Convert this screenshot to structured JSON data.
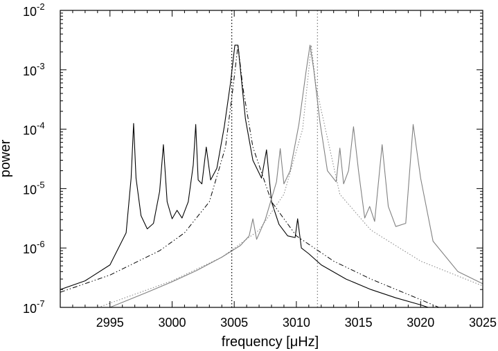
{
  "chart_data": {
    "type": "line",
    "title": "",
    "xlabel": "frequency [μHz]",
    "ylabel": "power",
    "x_scale": "linear",
    "y_scale": "log",
    "xlim": [
      2991,
      3025
    ],
    "ylim": [
      1e-07,
      0.01
    ],
    "grid": false,
    "legend": "none",
    "x_ticks": [
      {
        "value": 2995,
        "label": "2995"
      },
      {
        "value": 3000,
        "label": "3000"
      },
      {
        "value": 3005,
        "label": "3005"
      },
      {
        "value": 3010,
        "label": "3010"
      },
      {
        "value": 3015,
        "label": "3015"
      },
      {
        "value": 3020,
        "label": "3020"
      },
      {
        "value": 3025,
        "label": "3025"
      }
    ],
    "y_ticks": [
      {
        "value": 1e-07,
        "base": "10",
        "exp": "-7"
      },
      {
        "value": 1e-06,
        "base": "10",
        "exp": "-6"
      },
      {
        "value": 1e-05,
        "base": "10",
        "exp": "-5"
      },
      {
        "value": 0.0001,
        "base": "10",
        "exp": "-4"
      },
      {
        "value": 0.001,
        "base": "10",
        "exp": "-3"
      },
      {
        "value": 0.01,
        "base": "10",
        "exp": "-2"
      }
    ],
    "vertical_lines": [
      {
        "x": 3004.8,
        "color": "#000000",
        "style": "dotted"
      },
      {
        "x": 3011.7,
        "color": "#808080",
        "style": "dotted"
      }
    ],
    "series": [
      {
        "color": "#000000",
        "style": "solid",
        "x": [
          2991,
          2993,
          2995,
          2996.3,
          2996.7,
          2996.9,
          2997.1,
          2997.5,
          2998.0,
          2998.5,
          2999.0,
          2999.3,
          2999.6,
          3000.0,
          3000.4,
          3000.8,
          3001.3,
          3001.7,
          3001.9,
          3002.1,
          3002.4,
          3002.75,
          3003.1,
          3003.6,
          3004.2,
          3004.7,
          3005.05,
          3005.3,
          3005.55,
          3005.9,
          3006.5,
          3007.2,
          3007.6,
          3008.0,
          3008.6,
          3009.3,
          3009.9,
          3010.1,
          3010.4,
          3011.0,
          3012.0,
          3014.0,
          3016.0,
          3018.0,
          3020.0,
          3022.0,
          3023.2
        ],
        "y": [
          2e-07,
          2.8e-07,
          5.2e-07,
          1.8e-06,
          1.5e-05,
          0.000125,
          1.5e-05,
          3.5e-06,
          2.1e-06,
          2.6e-06,
          9e-06,
          5.5e-05,
          6e-06,
          3.1e-06,
          4.3e-06,
          3.2e-06,
          6e-06,
          2.5e-05,
          0.00012,
          1.4e-05,
          1.2e-05,
          5e-05,
          1.4e-05,
          2.2e-05,
          0.00011,
          0.0006,
          0.0026,
          0.0026,
          0.0008,
          0.00015,
          3e-05,
          1.5e-05,
          4.5e-05,
          6e-06,
          2.5e-06,
          1.6e-06,
          1.5e-06,
          3.1e-06,
          1e-06,
          8e-07,
          5.2e-07,
          3e-07,
          2e-07,
          1.45e-07,
          1.1e-07,
          8e-08,
          7e-08
        ]
      },
      {
        "color": "#000000",
        "style": "dashdot",
        "x": [
          2991,
          2995,
          2999,
          3001,
          3003,
          3004.3,
          3004.9,
          3005.3,
          3005.7,
          3006.5,
          3008,
          3010,
          3013,
          3016,
          3020,
          3023.2
        ],
        "y": [
          1.8e-07,
          3.5e-07,
          9e-07,
          1.8e-06,
          6e-06,
          5e-05,
          0.0005,
          0.0026,
          0.0005,
          5e-05,
          6e-06,
          1.6e-06,
          6e-07,
          3e-07,
          1.35e-07,
          7e-08
        ]
      },
      {
        "color": "#808080",
        "style": "solid",
        "x": [
          2992.8,
          2995,
          2998,
          3000,
          3002,
          3004,
          3005.5,
          3006.2,
          3006.5,
          3006.8,
          3007.5,
          3008.4,
          3008.7,
          3009.0,
          3009.5,
          3010.2,
          3010.8,
          3011.1,
          3011.4,
          3011.9,
          3012.5,
          3013.2,
          3013.5,
          3013.8,
          3014.2,
          3014.6,
          3015.0,
          3015.5,
          3015.9,
          3016.3,
          3016.9,
          3017.4,
          3018.0,
          3018.8,
          3019.4,
          3020.0,
          3021.0,
          3023.0,
          3025
        ],
        "y": [
          8e-08,
          1e-07,
          1.8e-07,
          2.7e-07,
          4.2e-07,
          7e-07,
          1.1e-06,
          1.6e-06,
          3.1e-06,
          1.4e-06,
          3e-06,
          1.3e-05,
          4.7e-05,
          1.2e-05,
          2e-05,
          0.00012,
          0.001,
          0.0026,
          0.001,
          0.00013,
          2e-05,
          1.3e-05,
          4.8e-05,
          1.2e-05,
          2e-05,
          0.00011,
          2e-05,
          3.2e-06,
          5e-06,
          2.8e-06,
          5.5e-05,
          5e-06,
          2.3e-06,
          2.6e-06,
          0.00012,
          1.5e-05,
          1.3e-06,
          4e-07,
          2.5e-07
        ]
      },
      {
        "color": "#808080",
        "style": "dotted",
        "x": [
          2992.8,
          2996,
          3000,
          3004,
          3007,
          3009,
          3010.5,
          3011.0,
          3011.2,
          3011.6,
          3013.5,
          3016,
          3020,
          3025
        ],
        "y": [
          8e-08,
          1.4e-07,
          2.8e-07,
          7e-07,
          2e-06,
          8e-06,
          0.0001,
          0.001,
          0.0026,
          0.0005,
          8e-06,
          2e-06,
          6e-07,
          2.3e-07
        ]
      }
    ]
  }
}
